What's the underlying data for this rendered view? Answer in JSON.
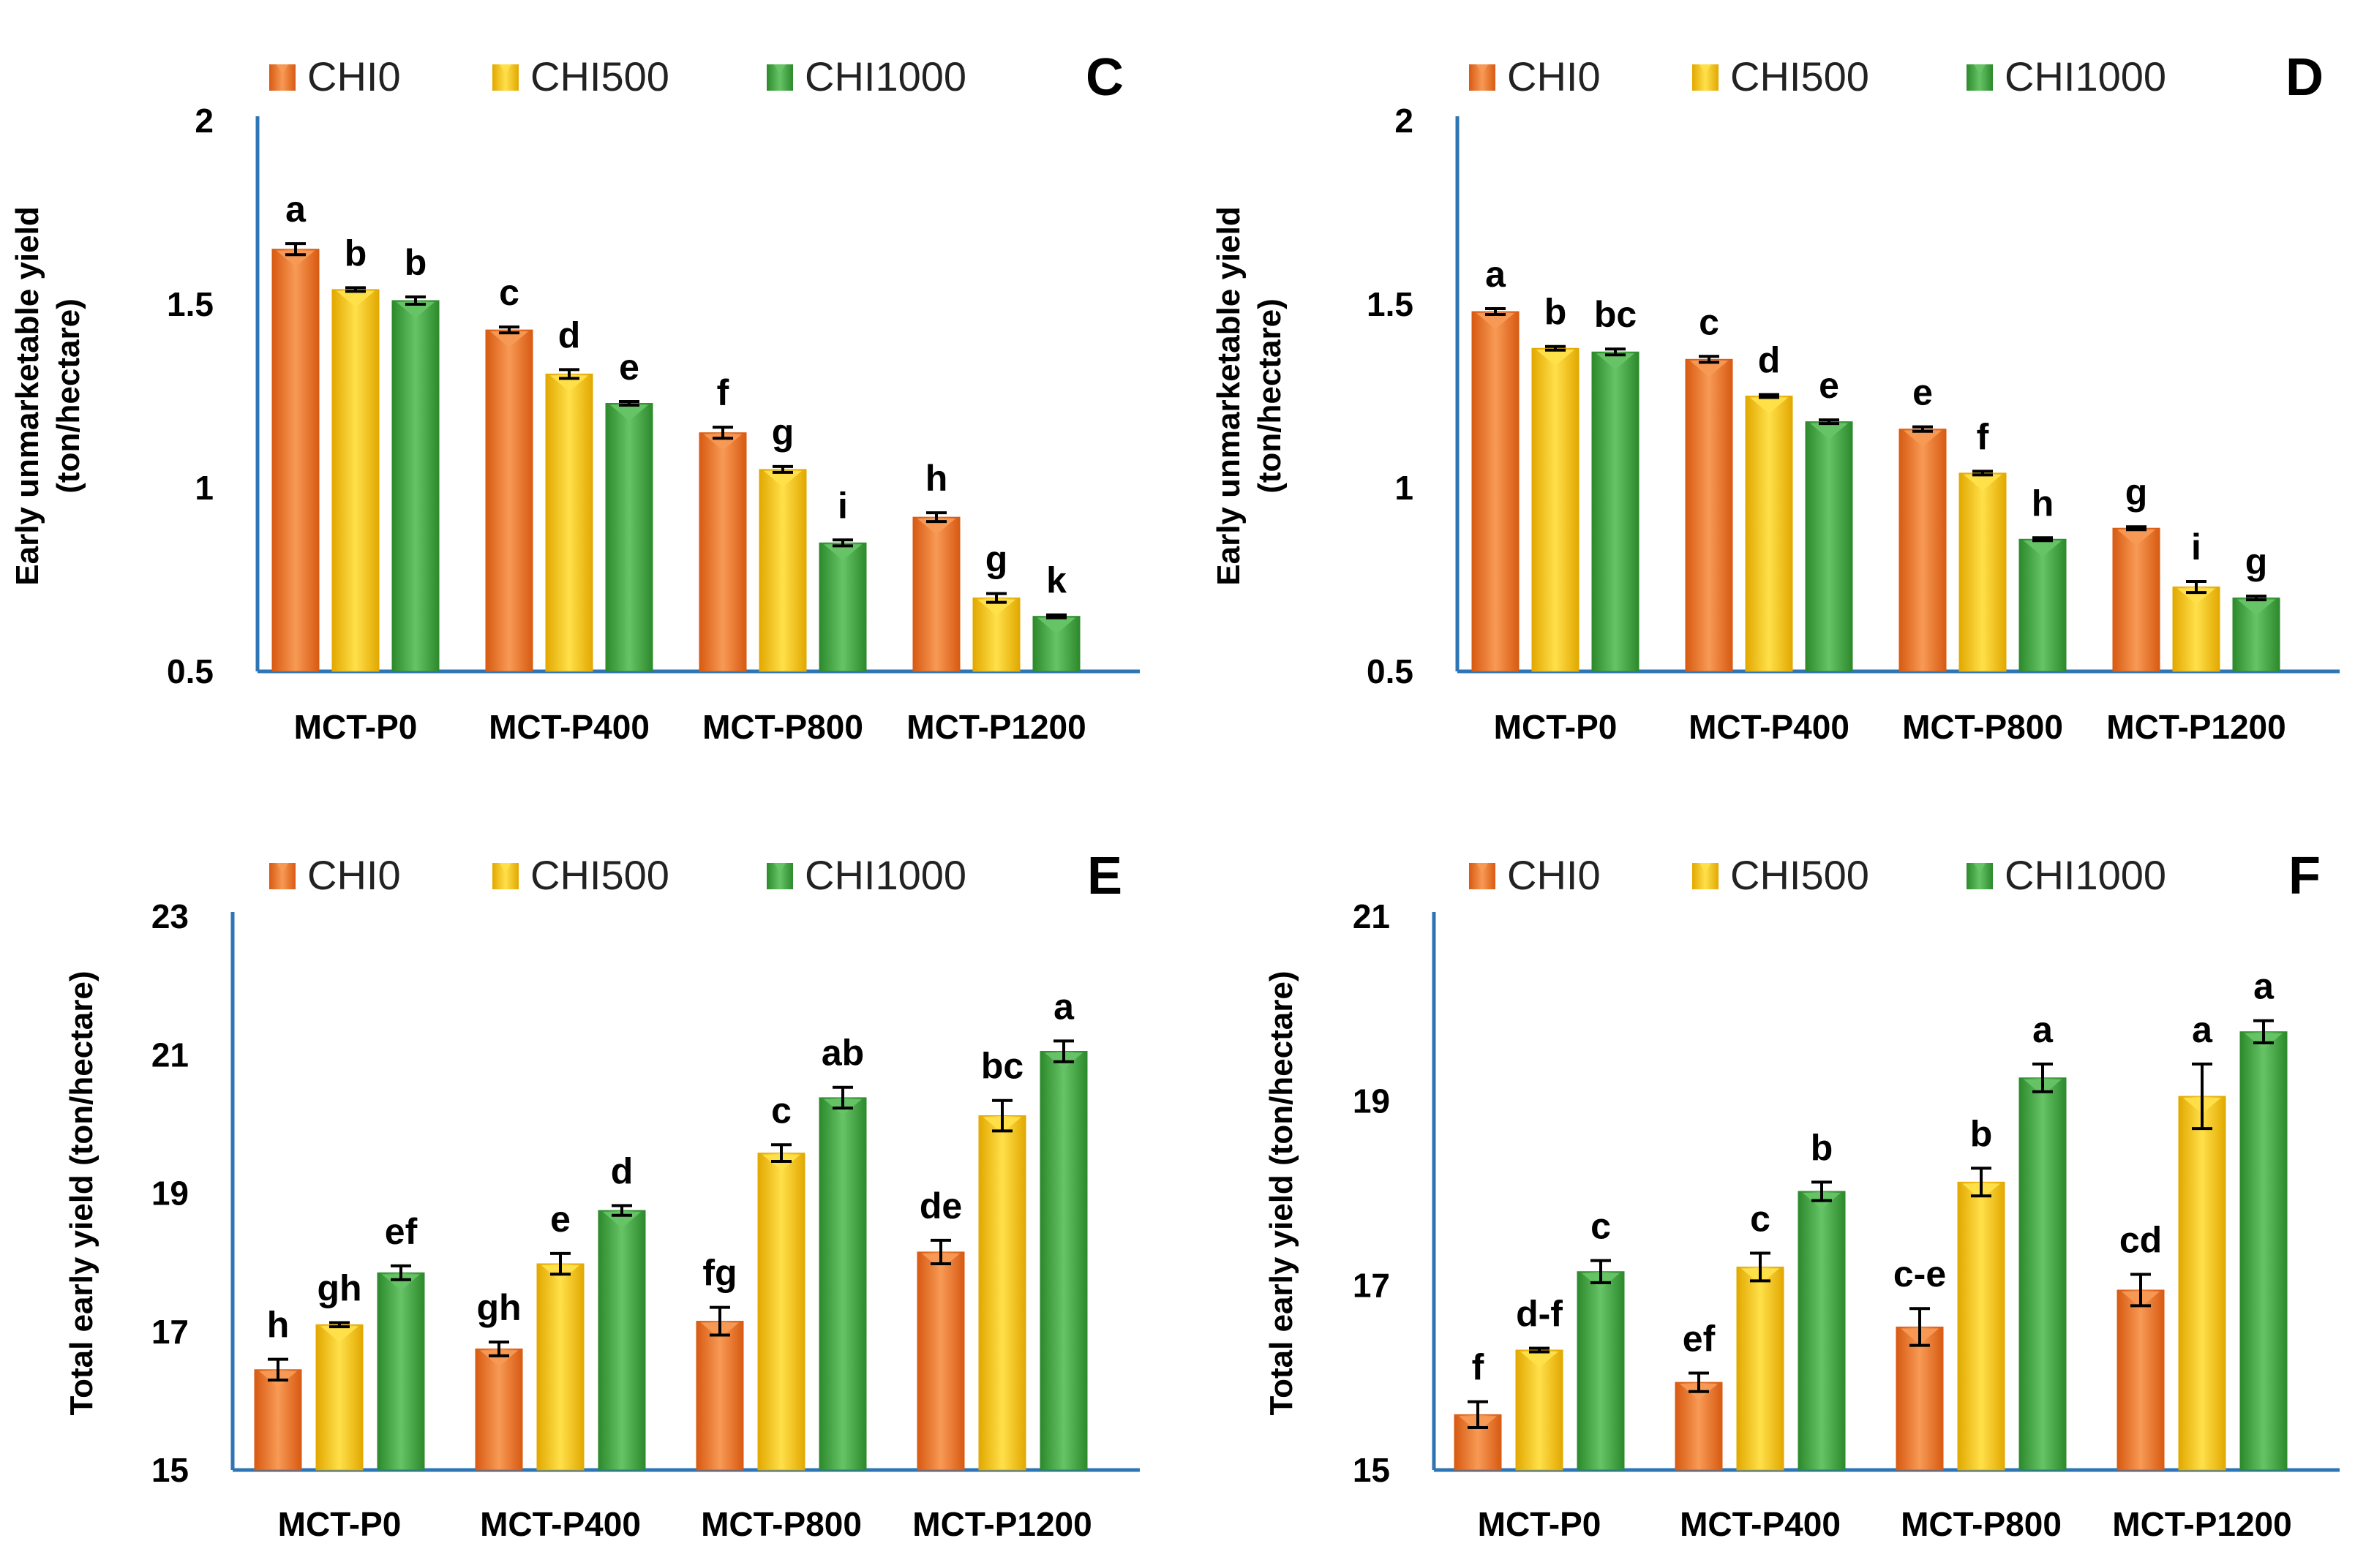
{
  "colors": {
    "CHI0": "#F07A2A",
    "CHI500": "#F7C800",
    "CHI1000": "#3FA33F",
    "axis": "#2E75B6"
  },
  "chart_data": [
    {
      "panel": "C",
      "type": "bar",
      "legend": [
        "CHI0",
        "CHI500",
        "CHI1000"
      ],
      "categories": [
        "MCT-P0",
        "MCT-P400",
        "MCT-P800",
        "MCT-P1200"
      ],
      "ylabel_lines": [
        "Early unmarketable yield",
        "(ton/hectare)"
      ],
      "ylim": [
        0.5,
        2
      ],
      "yticks": [
        "0.5",
        "1",
        "1.5",
        "2"
      ],
      "series": [
        {
          "name": "CHI0",
          "values": [
            1.65,
            1.43,
            1.15,
            0.92
          ],
          "errors": [
            0.015,
            0.008,
            0.015,
            0.012
          ],
          "letters": [
            "a",
            "c",
            "f",
            "h"
          ]
        },
        {
          "name": "CHI500",
          "values": [
            1.54,
            1.31,
            1.05,
            0.7
          ],
          "errors": [
            0.005,
            0.012,
            0.008,
            0.012
          ],
          "letters": [
            "b",
            "d",
            "g",
            "g"
          ]
        },
        {
          "name": "CHI1000",
          "values": [
            1.51,
            1.23,
            0.85,
            0.65
          ],
          "errors": [
            0.01,
            0.005,
            0.008,
            0.004
          ],
          "letters": [
            "b",
            "e",
            "i",
            "k"
          ]
        }
      ]
    },
    {
      "panel": "D",
      "type": "bar",
      "legend": [
        "CHI0",
        "CHI500",
        "CHI1000"
      ],
      "categories": [
        "MCT-P0",
        "MCT-P400",
        "MCT-P800",
        "MCT-P1200"
      ],
      "ylabel_lines": [
        "Early unmarketable yield",
        "(ton/hectare)"
      ],
      "ylim": [
        0.5,
        2
      ],
      "yticks": [
        "0.5",
        "1",
        "1.5",
        "2"
      ],
      "series": [
        {
          "name": "CHI0",
          "values": [
            1.48,
            1.35,
            1.16,
            0.89
          ],
          "errors": [
            0.008,
            0.008,
            0.006,
            0.004
          ],
          "letters": [
            "a",
            "c",
            "e",
            "g"
          ]
        },
        {
          "name": "CHI500",
          "values": [
            1.38,
            1.25,
            1.04,
            0.73
          ],
          "errors": [
            0.005,
            0.004,
            0.005,
            0.015
          ],
          "letters": [
            "b",
            "d",
            "f",
            "i"
          ]
        },
        {
          "name": "CHI1000",
          "values": [
            1.37,
            1.18,
            0.86,
            0.7
          ],
          "errors": [
            0.008,
            0.005,
            0.004,
            0.005
          ],
          "letters": [
            "bc",
            "e",
            "h",
            "g"
          ]
        }
      ]
    },
    {
      "panel": "E",
      "type": "bar",
      "legend": [
        "CHI0",
        "CHI500",
        "CHI1000"
      ],
      "categories": [
        "MCT-P0",
        "MCT-P400",
        "MCT-P800",
        "MCT-P1200"
      ],
      "ylabel_lines": [
        "Total early yield (ton/hectare)"
      ],
      "ylim": [
        15,
        23
      ],
      "yticks": [
        "15",
        "17",
        "19",
        "21",
        "23"
      ],
      "series": [
        {
          "name": "CHI0",
          "values": [
            16.45,
            16.75,
            17.15,
            18.15
          ],
          "errors": [
            0.15,
            0.1,
            0.2,
            0.17
          ],
          "letters": [
            "h",
            "gh",
            "fg",
            "de"
          ]
        },
        {
          "name": "CHI500",
          "values": [
            17.1,
            17.98,
            19.58,
            20.12
          ],
          "errors": [
            0.03,
            0.15,
            0.12,
            0.22
          ],
          "letters": [
            "gh",
            "e",
            "c",
            "bc"
          ]
        },
        {
          "name": "CHI1000",
          "values": [
            17.85,
            18.75,
            20.38,
            21.05
          ],
          "errors": [
            0.1,
            0.07,
            0.15,
            0.15
          ],
          "letters": [
            "ef",
            "d",
            "ab",
            "a"
          ]
        }
      ]
    },
    {
      "panel": "F",
      "type": "bar",
      "legend": [
        "CHI0",
        "CHI500",
        "CHI1000"
      ],
      "categories": [
        "MCT-P0",
        "MCT-P400",
        "MCT-P800",
        "MCT-P1200"
      ],
      "ylabel_lines": [
        "Total early yield (ton/hectare)"
      ],
      "ylim": [
        15,
        21
      ],
      "yticks": [
        "15",
        "17",
        "19",
        "21"
      ],
      "series": [
        {
          "name": "CHI0",
          "values": [
            15.6,
            15.95,
            16.55,
            16.95
          ],
          "errors": [
            0.14,
            0.1,
            0.2,
            0.17
          ],
          "letters": [
            "f",
            "ef",
            "c-e",
            "cd"
          ]
        },
        {
          "name": "CHI500",
          "values": [
            16.3,
            17.2,
            18.12,
            19.05
          ],
          "errors": [
            0.02,
            0.15,
            0.15,
            0.35
          ],
          "letters": [
            "d-f",
            "c",
            "b",
            "a"
          ]
        },
        {
          "name": "CHI1000",
          "values": [
            17.15,
            18.02,
            19.25,
            19.75
          ],
          "errors": [
            0.12,
            0.1,
            0.15,
            0.12
          ],
          "letters": [
            "c",
            "b",
            "a",
            "a"
          ]
        }
      ]
    }
  ]
}
